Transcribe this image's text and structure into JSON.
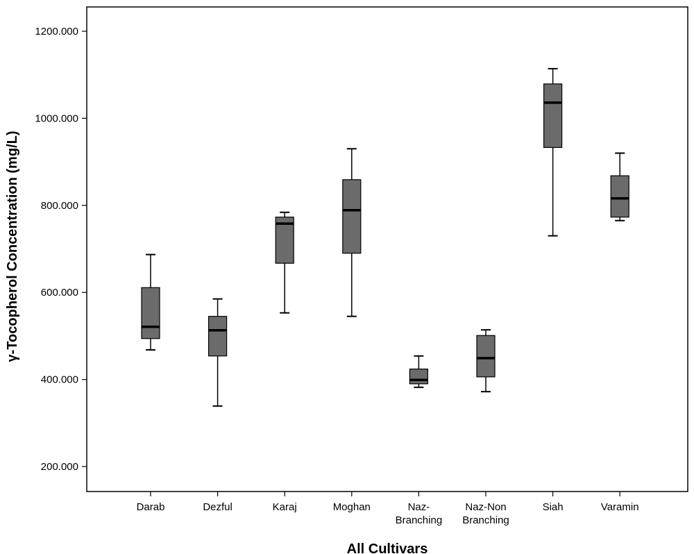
{
  "chart_data": {
    "type": "boxplot",
    "xlabel": "All Cultivars",
    "ylabel": "γ-Tocopherol Concentration (mg/L)",
    "ylim": [
      100,
      1260
    ],
    "yticks": [
      200,
      400,
      600,
      800,
      1000,
      1200
    ],
    "ytick_labels": [
      "200.000",
      "400.000",
      "600.000",
      "800.000",
      "1000.000",
      "1200.000"
    ],
    "grid": false,
    "box_color": "#6b6b6b",
    "categories": [
      {
        "lines": [
          "Darab"
        ],
        "min": 468,
        "q1": 494,
        "median": 521,
        "q3": 611,
        "max": 687
      },
      {
        "lines": [
          "Dezful"
        ],
        "min": 339,
        "q1": 454,
        "median": 513,
        "q3": 545,
        "max": 585
      },
      {
        "lines": [
          "Karaj"
        ],
        "min": 553,
        "q1": 667,
        "median": 758,
        "q3": 773,
        "max": 784
      },
      {
        "lines": [
          "Moghan"
        ],
        "min": 545,
        "q1": 690,
        "median": 789,
        "q3": 859,
        "max": 930
      },
      {
        "lines": [
          "Naz-",
          "Branching"
        ],
        "min": 382,
        "q1": 390,
        "median": 399,
        "q3": 424,
        "max": 454
      },
      {
        "lines": [
          "Naz-Non",
          "Branching"
        ],
        "min": 372,
        "q1": 406,
        "median": 449,
        "q3": 501,
        "max": 514
      },
      {
        "lines": [
          "Siah"
        ],
        "min": 730,
        "q1": 933,
        "median": 1036,
        "q3": 1079,
        "max": 1114
      },
      {
        "lines": [
          "Varamin"
        ],
        "min": 765,
        "q1": 773,
        "median": 816,
        "q3": 868,
        "max": 920
      }
    ]
  }
}
